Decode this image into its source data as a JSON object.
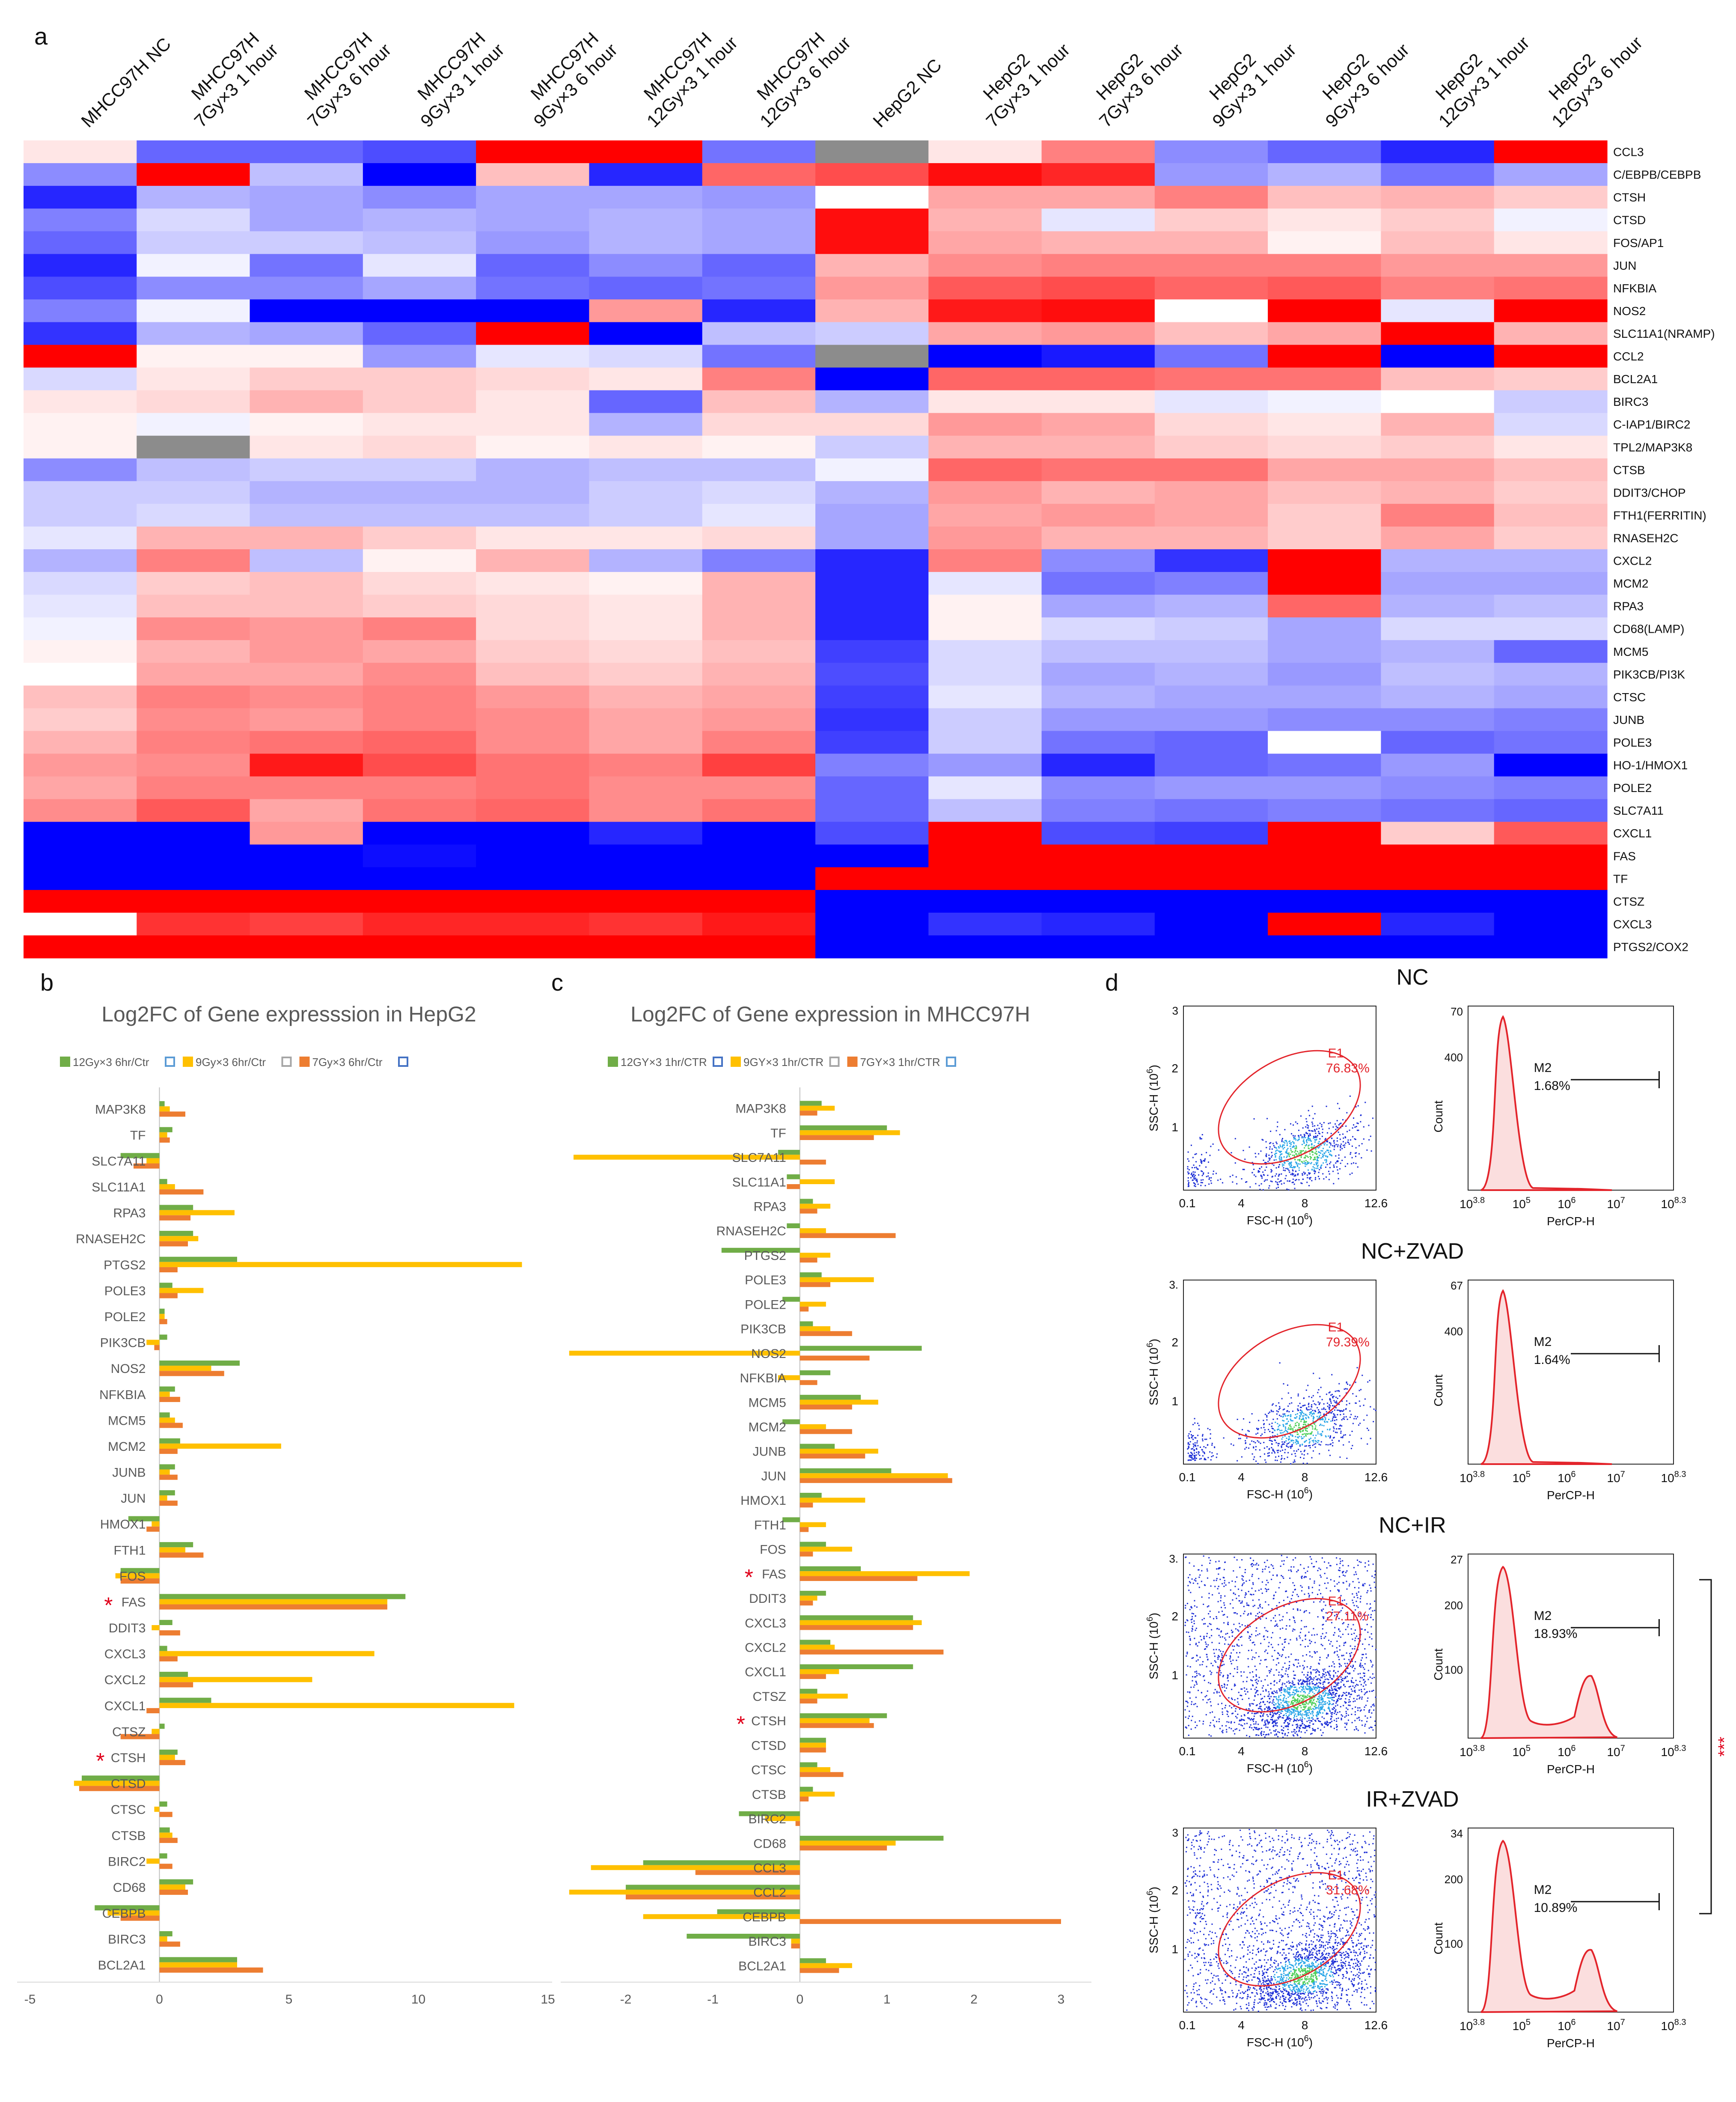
{
  "panels": {
    "a": "a",
    "b": "b",
    "c": "c",
    "d": "d"
  },
  "chart_data": [
    {
      "id": "heatmap",
      "type": "heatmap",
      "columns": [
        "MHCC97H NC",
        "MHCC97H\n7Gy×3 1 hour",
        "MHCC97H\n7Gy×3 6 hour",
        "MHCC97H\n9Gy×3 1 hour",
        "MHCC97H\n9Gy×3 6 hour",
        "MHCC97H\n12Gy×3 1 hour",
        "MHCC97H\n12Gy×3 6 hour",
        "HepG2 NC",
        "HepG2\n7Gy×3 1 hour",
        "HepG2\n7Gy×3 6 hour",
        "HepG2\n9Gy×3 1 hour",
        "HepG2\n9Gy×3 6 hour",
        "HepG2\n12Gy×3 1 hour",
        "HepG2\n12Gy×3 6 hour"
      ],
      "rows": [
        "CCL3",
        "C/EBPB/CEBPB",
        "CTSH",
        "CTSD",
        "FOS/AP1",
        "JUN",
        "NFKBIA",
        "NOS2",
        "SLC11A1(NRAMP)",
        "CCL2",
        "BCL2A1",
        "BIRC3",
        "C-IAP1/BIRC2",
        "TPL2/MAP3K8",
        "CTSB",
        "DDIT3/CHOP",
        "FTH1(FERRITIN)",
        "RNASEH2C",
        "CXCL2",
        "MCM2",
        "RPA3",
        "CD68(LAMP)",
        "MCM5",
        "PIK3CB/PI3K",
        "CTSC",
        "JUNB",
        "POLE3",
        "HO-1/HMOX1",
        "POLE2",
        "SLC7A11",
        "CXCL1",
        "FAS",
        "TF",
        "CTSZ",
        "CXCL3",
        "PTGS2/COX2"
      ],
      "scale": "-1 = blue, 0 = white, 1 = red, null = grey",
      "values": [
        [
          0.1,
          -0.6,
          -0.6,
          -0.7,
          1,
          1,
          -0.55,
          null,
          0.1,
          0.5,
          -0.45,
          -0.6,
          -0.85,
          1
        ],
        [
          -0.45,
          1,
          -0.25,
          -1,
          0.25,
          -0.85,
          0.6,
          0.7,
          0.95,
          0.85,
          -0.4,
          -0.3,
          -0.55,
          -0.35
        ],
        [
          -0.85,
          -0.3,
          -0.35,
          -0.45,
          -0.35,
          -0.35,
          -0.4,
          0,
          0.35,
          0.35,
          0.5,
          0.25,
          0.3,
          0.2
        ],
        [
          -0.5,
          -0.15,
          -0.35,
          -0.3,
          -0.35,
          -0.3,
          -0.35,
          0.95,
          0.3,
          -0.1,
          0.2,
          0.1,
          0.2,
          -0.05
        ],
        [
          -0.6,
          -0.2,
          -0.2,
          -0.25,
          -0.4,
          -0.3,
          -0.35,
          0.95,
          0.35,
          0.3,
          0.3,
          0.05,
          0.25,
          0.1
        ],
        [
          -0.85,
          -0.05,
          -0.55,
          -0.1,
          -0.6,
          -0.45,
          -0.6,
          0.3,
          0.45,
          0.5,
          0.5,
          0.5,
          0.4,
          0.4
        ],
        [
          -0.7,
          -0.45,
          -0.45,
          -0.35,
          -0.55,
          -0.6,
          -0.55,
          0.4,
          0.65,
          0.7,
          0.6,
          0.65,
          0.5,
          0.55
        ],
        [
          -0.5,
          -0.05,
          -1,
          -1,
          -1,
          0.4,
          -0.85,
          0.3,
          0.9,
          0.95,
          0,
          1,
          -0.1,
          1
        ],
        [
          -0.8,
          -0.3,
          -0.35,
          -0.6,
          1,
          -1,
          -0.25,
          -0.2,
          0.35,
          0.4,
          0.25,
          0.35,
          1,
          0.3
        ],
        [
          1,
          0.05,
          0.05,
          -0.4,
          -0.1,
          -0.15,
          -0.55,
          null,
          -1,
          -0.9,
          -0.55,
          1,
          -1,
          1
        ],
        [
          -0.15,
          0.1,
          0.2,
          0.2,
          0.15,
          0.1,
          0.5,
          -1,
          0.6,
          0.6,
          0.55,
          0.55,
          0.25,
          0.2
        ],
        [
          0.1,
          0.15,
          0.3,
          0.2,
          0.1,
          -0.6,
          0.25,
          -0.3,
          0.1,
          0.1,
          -0.1,
          -0.05,
          0,
          -0.2
        ],
        [
          0.05,
          -0.05,
          0.05,
          0.1,
          0.1,
          -0.3,
          0.15,
          0.15,
          0.4,
          0.35,
          0.15,
          0.1,
          0.3,
          -0.15
        ],
        [
          0.05,
          null,
          0.1,
          0.15,
          0.05,
          0.1,
          0.05,
          -0.2,
          0.3,
          0.3,
          0.2,
          0.15,
          0.2,
          0.1
        ],
        [
          -0.45,
          -0.25,
          -0.2,
          -0.2,
          -0.3,
          -0.25,
          -0.25,
          -0.05,
          0.6,
          0.55,
          0.55,
          0.35,
          0.35,
          0.25
        ],
        [
          -0.2,
          -0.2,
          -0.3,
          -0.3,
          -0.3,
          -0.2,
          -0.15,
          -0.3,
          0.4,
          0.3,
          0.35,
          0.25,
          0.3,
          0.2
        ],
        [
          -0.2,
          -0.15,
          -0.25,
          -0.25,
          -0.25,
          -0.2,
          -0.1,
          -0.35,
          0.35,
          0.4,
          0.35,
          0.2,
          0.5,
          0.25
        ],
        [
          -0.1,
          0.3,
          0.3,
          0.2,
          0.1,
          0.1,
          0.15,
          -0.35,
          0.4,
          0.3,
          0.3,
          0.2,
          0.35,
          0.2
        ],
        [
          -0.3,
          0.5,
          -0.25,
          0.05,
          0.3,
          -0.3,
          -0.5,
          -0.85,
          0.5,
          -0.45,
          -0.8,
          1,
          -0.3,
          -0.3
        ],
        [
          -0.15,
          0.2,
          0.25,
          0.15,
          0.1,
          0.05,
          0.3,
          -0.85,
          -0.1,
          -0.55,
          -0.5,
          1,
          -0.35,
          -0.35
        ],
        [
          -0.1,
          0.25,
          0.25,
          0.2,
          0.15,
          0.1,
          0.3,
          -0.85,
          0.05,
          -0.35,
          -0.3,
          0.6,
          -0.3,
          -0.25
        ],
        [
          -0.05,
          0.45,
          0.4,
          0.5,
          0.15,
          0.1,
          0.3,
          -0.85,
          0.05,
          -0.15,
          -0.2,
          -0.35,
          -0.15,
          -0.15
        ],
        [
          0.05,
          0.3,
          0.4,
          0.35,
          0.2,
          0.15,
          0.25,
          -0.75,
          -0.15,
          -0.25,
          -0.25,
          -0.35,
          -0.3,
          -0.6
        ],
        [
          0,
          0.35,
          0.35,
          0.45,
          0.25,
          0.2,
          0.3,
          -0.7,
          -0.15,
          -0.35,
          -0.3,
          -0.4,
          -0.25,
          -0.3
        ],
        [
          0.25,
          0.5,
          0.45,
          0.5,
          0.4,
          0.3,
          0.35,
          -0.75,
          -0.1,
          -0.3,
          -0.35,
          -0.35,
          -0.3,
          -0.35
        ],
        [
          0.2,
          0.45,
          0.4,
          0.5,
          0.45,
          0.35,
          0.4,
          -0.8,
          -0.2,
          -0.4,
          -0.4,
          -0.45,
          -0.45,
          -0.5
        ],
        [
          0.3,
          0.5,
          0.55,
          0.6,
          0.45,
          0.35,
          0.5,
          -0.75,
          -0.2,
          -0.55,
          -0.6,
          0,
          -0.6,
          -0.55
        ],
        [
          0.4,
          0.45,
          0.9,
          0.7,
          0.55,
          0.5,
          0.75,
          -0.5,
          -0.4,
          -0.85,
          -0.6,
          -0.55,
          -0.4,
          -1
        ],
        [
          0.35,
          0.5,
          0.5,
          0.5,
          0.55,
          0.45,
          0.45,
          -0.6,
          -0.1,
          -0.45,
          -0.4,
          -0.4,
          -0.45,
          -0.5
        ],
        [
          0.45,
          0.65,
          0.35,
          0.55,
          0.6,
          0.45,
          0.55,
          -0.6,
          -0.25,
          -0.5,
          -0.55,
          -0.5,
          -0.55,
          -0.6
        ],
        [
          -1,
          -1,
          0.4,
          -1,
          -1,
          -0.85,
          -1,
          -0.7,
          1,
          -0.7,
          -0.75,
          1,
          0.2,
          0.65
        ],
        [
          -1,
          -1,
          -1,
          -0.95,
          -1,
          -1,
          -1,
          -1,
          1,
          1,
          1,
          1,
          1,
          1
        ],
        [
          -1,
          -1,
          -1,
          -1,
          -1,
          -1,
          -1,
          1,
          1,
          1,
          1,
          1,
          1,
          1
        ],
        [
          1,
          1,
          1,
          1,
          1,
          1,
          1,
          -1,
          -1,
          -1,
          -1,
          -1,
          -1,
          -1
        ],
        [
          0,
          0.8,
          0.75,
          0.85,
          0.85,
          0.8,
          0.9,
          -1,
          -0.8,
          -0.85,
          -1,
          1,
          -0.85,
          -1
        ],
        [
          1,
          1,
          1,
          1,
          1,
          1,
          1,
          -1,
          -1,
          -1,
          -1,
          -1,
          -1,
          -1
        ]
      ]
    },
    {
      "id": "bar-hepg2",
      "type": "bar",
      "orientation": "horizontal",
      "title": "Log2FC of Gene expresssion in HepG2",
      "legend": [
        "12Gy×3 6hr/Ctr",
        "9Gy×3 6hr/Ctr",
        "7Gy×3 6hr/Ctr"
      ],
      "legend_colors": [
        "#70ad47",
        "#ffc000",
        "#ed7d31"
      ],
      "legend_marker_colors": [
        "#5b9bd5",
        "#a5a5a5",
        "#4472c4"
      ],
      "categories": [
        "BCL2A1",
        "BIRC3",
        "CEBPB",
        "CD68",
        "BIRC2",
        "CTSB",
        "CTSC",
        "CTSD",
        "CTSH",
        "CTSZ",
        "CXCL1",
        "CXCL2",
        "CXCL3",
        "DDIT3",
        "FAS",
        "FOS",
        "FTH1",
        "HMOX1",
        "JUN",
        "JUNB",
        "MCM2",
        "MCM5",
        "NFKBIA",
        "NOS2",
        "PIK3CB",
        "POLE2",
        "POLE3",
        "PTGS2",
        "RNASEH2C",
        "RPA3",
        "SLC11A1",
        "SLC7A11",
        "TF",
        "MAP3K8"
      ],
      "series": [
        {
          "name": "12Gy×3 6hr/Ctr",
          "values": [
            3,
            0.5,
            -2.5,
            1.3,
            0.3,
            0.4,
            0.3,
            -3,
            0.7,
            0.2,
            2,
            1.1,
            0.3,
            0.5,
            9.5,
            -1.5,
            1.3,
            -1.2,
            0.6,
            0.6,
            0.8,
            0.4,
            0.6,
            3.1,
            0.3,
            0.2,
            0.5,
            3,
            1.3,
            1.3,
            0.3,
            -1.5,
            0.5,
            0.2
          ]
        },
        {
          "name": "9Gy×3 6hr/Ctr",
          "values": [
            3,
            0.3,
            -2,
            1,
            -0.5,
            0.5,
            -0.2,
            -3.3,
            0.6,
            -0.3,
            13.7,
            5.9,
            8.3,
            -0.3,
            8.8,
            -1.7,
            1,
            -0.3,
            0.3,
            0.4,
            4.7,
            0.6,
            0.4,
            2,
            -0.5,
            0.2,
            1.7,
            14,
            1.5,
            2.9,
            0.6,
            -0.5,
            0.3,
            0.4
          ]
        },
        {
          "name": "7Gy×3 6hr/Ctr",
          "values": [
            4,
            0.8,
            -1.5,
            1.1,
            0.5,
            0.7,
            0.5,
            -3.1,
            1,
            -1.5,
            -0.5,
            1.3,
            0.7,
            0.8,
            8.8,
            -1.5,
            1.7,
            -0.5,
            0.7,
            0.7,
            0.7,
            0.9,
            0.8,
            2.5,
            -0.2,
            0.3,
            0.7,
            0.7,
            1.1,
            1.2,
            1.7,
            -1,
            0.4,
            1
          ]
        }
      ],
      "starred": [
        "FAS",
        "CTSH"
      ],
      "xlim": [
        -5,
        15
      ],
      "xticks": [
        "-5",
        "0",
        "5",
        "10",
        "15"
      ]
    },
    {
      "id": "bar-mhcc97h",
      "type": "bar",
      "orientation": "horizontal",
      "title": "Log2FC of Gene expression in MHCC97H",
      "legend": [
        "12GY×3 1hr/CTR",
        "9GY×3 1hr/CTR",
        "7GY×3 1hr/CTR"
      ],
      "legend_colors": [
        "#70ad47",
        "#ffc000",
        "#ed7d31"
      ],
      "legend_marker_colors": [
        "#4472c4",
        "#a5a5a5",
        "#5b9bd5"
      ],
      "categories": [
        "BCL2A1",
        "BIRC3",
        "CEBPB",
        "CCL2",
        "CCL3",
        "CD68",
        "BIRC2",
        "CTSB",
        "CTSC",
        "CTSD",
        "CTSH",
        "CTSZ",
        "CXCL1",
        "CXCL2",
        "CXCL3",
        "DDIT3",
        "FAS",
        "FOS",
        "FTH1",
        "HMOX1",
        "JUN",
        "JUNB",
        "MCM2",
        "MCM5",
        "NFKBIA",
        "NOS2",
        "PIK3CB",
        "POLE2",
        "POLE3",
        "PTGS2",
        "RNASEH2C",
        "RPA3",
        "SLC11A1",
        "SLC7A11",
        "TF",
        "MAP3K8"
      ],
      "series": [
        {
          "name": "12GY×3 1hr/CTR",
          "values": [
            0.3,
            -1.3,
            -0.95,
            -2,
            -1.8,
            1.65,
            -0.7,
            0.15,
            0.2,
            0.3,
            1,
            0.2,
            1.3,
            0.35,
            1.3,
            0.3,
            0.7,
            0.3,
            -0.2,
            0.25,
            1.05,
            0.4,
            -0.2,
            0.7,
            0.35,
            1.4,
            0.15,
            -0.2,
            0.25,
            -0.9,
            -0.15,
            0.15,
            -0.15,
            -0.25,
            1,
            0.25
          ]
        },
        {
          "name": "9GY×3 1hr/CTR",
          "values": [
            0.6,
            -0.1,
            -1.8,
            -2.65,
            -2.4,
            1.1,
            -0.4,
            0.4,
            0.35,
            0.3,
            0.8,
            0.55,
            0.45,
            0.4,
            1.4,
            0.2,
            1.95,
            0.6,
            0.3,
            0.75,
            1.7,
            0.9,
            0.3,
            0.9,
            -0.25,
            -2.65,
            0.35,
            0.3,
            0.85,
            0.35,
            0.3,
            0.35,
            0.4,
            -2.6,
            1.15,
            0.4
          ]
        },
        {
          "name": "7GY×3 1hr/CTR",
          "values": [
            0.45,
            -0.1,
            3.0,
            -2.0,
            -1.2,
            1.0,
            -0.05,
            0.1,
            0.5,
            0.3,
            0.85,
            0.2,
            0.3,
            1.65,
            1.3,
            0.15,
            1.35,
            0.15,
            0.1,
            0.15,
            1.75,
            0.75,
            0.6,
            0.6,
            0.2,
            0.8,
            0.6,
            0.1,
            0.35,
            0.2,
            1.1,
            0.2,
            -0.15,
            0.3,
            0.85,
            0.2
          ]
        }
      ],
      "starred": [
        "FAS",
        "CTSH"
      ],
      "xlim": [
        -2.6,
        3.3
      ],
      "xticks": [
        "-2",
        "-1",
        "0",
        "1",
        "2",
        "3"
      ]
    },
    {
      "id": "flow-cytometry",
      "type": "scatter",
      "conditions": [
        {
          "title": "NC",
          "gate_label": "E1",
          "gate_pct": "76.83%",
          "hist_ymax": "70",
          "hist_ymid": "400",
          "hist_marker": "M2",
          "hist_pct": "1.68%",
          "scatter_ymax": "3",
          "density": "low"
        },
        {
          "title": "NC+ZVAD",
          "gate_label": "E1",
          "gate_pct": "79.39%",
          "hist_ymax": "67",
          "hist_ymid": "400",
          "hist_marker": "M2",
          "hist_pct": "1.64%",
          "scatter_ymax": "3.",
          "density": "low"
        },
        {
          "title": "NC+IR",
          "gate_label": "E1",
          "gate_pct": "27.11%",
          "hist_ymax": "27",
          "hist_ymid": "200",
          "hist_ymid2": "100",
          "hist_marker": "M2",
          "hist_pct": "18.93%",
          "scatter_ymax": "3.",
          "density": "high"
        },
        {
          "title": "IR+ZVAD",
          "gate_label": "E1",
          "gate_pct": "31.68%",
          "hist_ymax": "34",
          "hist_ymid": "200",
          "hist_ymid2": "100",
          "hist_marker": "M2",
          "hist_pct": "10.89%",
          "scatter_ymax": "3",
          "density": "high"
        }
      ],
      "scatter_xlabel": "FSC-H",
      "scatter_xunit": "(10",
      "scatter_exp": "6",
      "scatter_ylabel": "SSC-H",
      "scatter_xticks": [
        "0.1",
        "4",
        "8",
        "12.6"
      ],
      "scatter_yticks": [
        "1",
        "2"
      ],
      "hist_xlabel": "PerCP-H",
      "hist_ylabel": "Count",
      "hist_xticks": [
        {
          "base": "10",
          "exp": "3.8"
        },
        {
          "base": "10",
          "exp": "5"
        },
        {
          "base": "10",
          "exp": "6"
        },
        {
          "base": "10",
          "exp": "7"
        },
        {
          "base": "10",
          "exp": "8.3"
        }
      ],
      "significance": "***"
    }
  ]
}
